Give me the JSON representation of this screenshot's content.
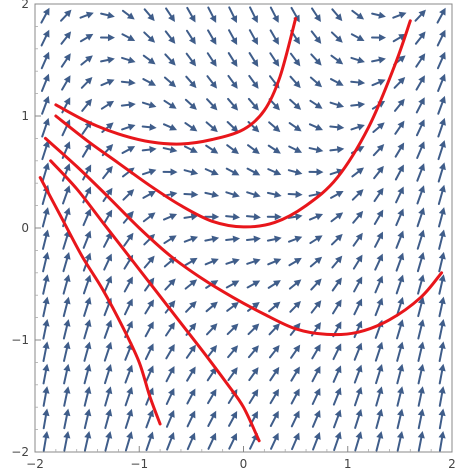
{
  "chart_data": {
    "type": "vector_field",
    "title": "",
    "xlabel": "",
    "ylabel": "",
    "xlim": [
      -2,
      2
    ],
    "ylim": [
      -2,
      2
    ],
    "x_ticks": [
      -2,
      -1,
      0,
      1,
      2
    ],
    "y_ticks": [
      -2,
      -1,
      0,
      1,
      2
    ],
    "x_tick_labels": [
      "−2",
      "−1",
      "0",
      "1",
      "2"
    ],
    "y_tick_labels": [
      "−2",
      "−1",
      "0",
      "1",
      "2"
    ],
    "field": {
      "u": 1,
      "v": "x^2 - y",
      "grid_spacing": 0.2,
      "arrow_color": "#3f5d8a"
    },
    "series": [
      {
        "color": "#e8161b",
        "points": [
          [
            -1.8,
            1.1
          ],
          [
            -1.5,
            0.95
          ],
          [
            -1.2,
            0.84
          ],
          [
            -0.9,
            0.77
          ],
          [
            -0.6,
            0.75
          ],
          [
            -0.3,
            0.79
          ],
          [
            0.0,
            0.88
          ],
          [
            0.2,
            1.05
          ],
          [
            0.35,
            1.35
          ],
          [
            0.5,
            1.87
          ]
        ]
      },
      {
        "color": "#e8161b",
        "points": [
          [
            -1.8,
            1.0
          ],
          [
            -1.5,
            0.78
          ],
          [
            -1.2,
            0.58
          ],
          [
            -0.9,
            0.38
          ],
          [
            -0.6,
            0.2
          ],
          [
            -0.3,
            0.06
          ],
          [
            0.0,
            0.01
          ],
          [
            0.3,
            0.05
          ],
          [
            0.6,
            0.2
          ],
          [
            0.9,
            0.45
          ],
          [
            1.2,
            0.9
          ],
          [
            1.45,
            1.45
          ],
          [
            1.6,
            1.85
          ]
        ]
      },
      {
        "color": "#e8161b",
        "points": [
          [
            -1.9,
            0.8
          ],
          [
            -1.6,
            0.55
          ],
          [
            -1.3,
            0.28
          ],
          [
            -1.0,
            0.0
          ],
          [
            -0.7,
            -0.25
          ],
          [
            -0.4,
            -0.45
          ],
          [
            -0.1,
            -0.62
          ],
          [
            0.2,
            -0.77
          ],
          [
            0.5,
            -0.9
          ],
          [
            0.8,
            -0.95
          ],
          [
            1.1,
            -0.93
          ],
          [
            1.4,
            -0.82
          ],
          [
            1.7,
            -0.62
          ],
          [
            1.9,
            -0.4
          ]
        ]
      },
      {
        "color": "#e8161b",
        "points": [
          [
            -1.85,
            0.6
          ],
          [
            -1.6,
            0.35
          ],
          [
            -1.35,
            0.05
          ],
          [
            -1.1,
            -0.25
          ],
          [
            -0.85,
            -0.55
          ],
          [
            -0.6,
            -0.85
          ],
          [
            -0.35,
            -1.15
          ],
          [
            -0.15,
            -1.4
          ],
          [
            0.0,
            -1.6
          ],
          [
            0.15,
            -1.9
          ]
        ]
      },
      {
        "color": "#e8161b",
        "points": [
          [
            -1.95,
            0.45
          ],
          [
            -1.75,
            0.1
          ],
          [
            -1.55,
            -0.25
          ],
          [
            -1.35,
            -0.55
          ],
          [
            -1.15,
            -0.9
          ],
          [
            -1.0,
            -1.2
          ],
          [
            -0.9,
            -1.5
          ],
          [
            -0.8,
            -1.75
          ]
        ]
      }
    ]
  }
}
